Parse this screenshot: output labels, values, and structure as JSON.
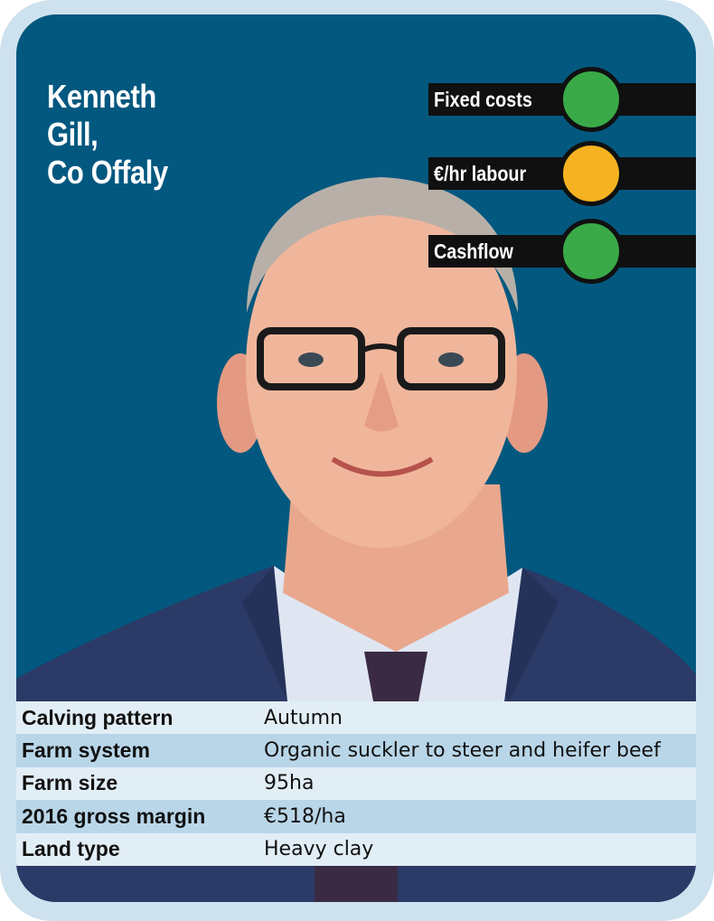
{
  "profile": {
    "name_line1": "Kenneth",
    "name_line2": "Gill,",
    "name_line3": "Co Offaly"
  },
  "indicators": [
    {
      "label": "Fixed costs",
      "status": "green",
      "color": "#3aaa48"
    },
    {
      "label": "€/hr labour",
      "status": "amber",
      "color": "#f6b220"
    },
    {
      "label": "Cashflow",
      "status": "green",
      "color": "#3aaa48"
    }
  ],
  "details": [
    {
      "label": "Calving pattern",
      "value": "Autumn"
    },
    {
      "label": "Farm system",
      "value": "Organic suckler to steer and heifer beef"
    },
    {
      "label": "Farm size",
      "value": "95ha"
    },
    {
      "label": "2016 gross margin",
      "value": "€518/ha"
    },
    {
      "label": "Land type",
      "value": "Heavy clay"
    }
  ],
  "colors": {
    "background": "#03587f",
    "frame": "#cde2ee",
    "row_light": "#e2eef6",
    "row_dark": "#b9d6e8"
  }
}
